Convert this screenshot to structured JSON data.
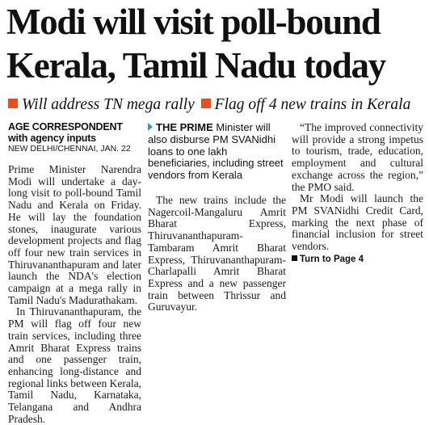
{
  "headline": {
    "line1": "Modi will visit poll-bound",
    "line2": "Kerala, Tamil Nadu today"
  },
  "decks": [
    {
      "text": "Will address TN mega rally"
    },
    {
      "text": "Flag off 4 new trains in Kerala"
    }
  ],
  "accent_color": "#e4511c",
  "byline": {
    "line1": "AGE CORRESPONDENT",
    "line2": "with agency inputs",
    "dateline": "NEW DELHI/CHENNAI, JAN. 22"
  },
  "body": {
    "para1": "Prime Minister Narendra Modi will undertake a day-long visit to poll-bound Tamil Nadu and Kerala on Friday. He will lay the foundation stones, inaugurate various development projects and flag off four new train services in Thiruvananthapuram and later launch the NDA's election campaign at a mega rally in Tamil Nadu's Madurathakam.",
    "para2": "In Thiruvananthapuram, the PM will flag off four new train services, including three Amrit Bharat Express trains and one passenger train, enhancing long-distance and regional links between Kerala, Tamil Nadu, Karnataka, Telangana and Andhra Pradesh.",
    "para3": "The new trains include the Nagercoil-Mangaluru Amrit Bharat Express, Thiruvananthapuram-Tambaram Amrit Bharat Express, Thiruvananthapuram-Charlapalli Amrit Bharat Express and a new passenger train between Thrissur and Guruvayur.",
    "para4": "“The improved connectivity will provide a strong impetus to tourism, trade, education, employment and cultural exchange across the region,” the PMO said.",
    "para5": "Mr Modi will launch the PM SVANidhi Credit Card, marking the next phase of financial inclusion for street vendors."
  },
  "sidebar_lead": {
    "kicker": "THE PRIME",
    "text": "Minister will also disburse PM SVANidhi loans to one lakh beneficiaries, including street vendors from Kerala"
  },
  "jump": "Turn to Page 4"
}
